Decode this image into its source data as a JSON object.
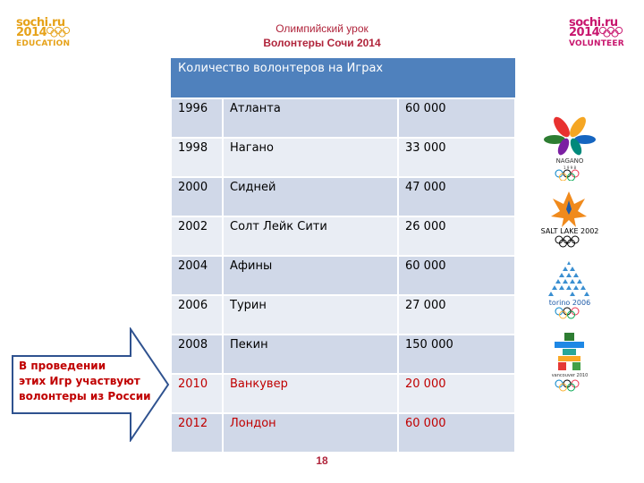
{
  "header": {
    "line1": "Олимпийский урок",
    "line2": "Волонтеры Сочи 2014"
  },
  "logos": {
    "left": {
      "brand_line1": "sochi.ru",
      "brand_line2": "2014",
      "sub": "EDUCATION",
      "color": "#e6a21a"
    },
    "right": {
      "brand_line1": "sochi.ru",
      "brand_line2": "2014",
      "sub": "VOLUNTEER",
      "color": "#c8166e"
    }
  },
  "table": {
    "title": "Количество волонтеров на Играх",
    "rows": [
      {
        "year": "1996",
        "city": "Атланта",
        "count": "60 000"
      },
      {
        "year": "1998",
        "city": "Нагано",
        "count": "33 000"
      },
      {
        "year": "2000",
        "city": "Сидней",
        "count": "47 000"
      },
      {
        "year": "2002",
        "city": "Солт Лейк Сити",
        "count": "26 000"
      },
      {
        "year": "2004",
        "city": "Афины",
        "count": "60 000"
      },
      {
        "year": "2006",
        "city": "Турин",
        "count": "27 000"
      },
      {
        "year": "2008",
        "city": "Пекин",
        "count": "150 000"
      },
      {
        "year": "2010",
        "city": "Ванкувер",
        "count": "20 000"
      },
      {
        "year": "2012",
        "city": "Лондон",
        "count": "60 000"
      }
    ],
    "header_color": "#4f81bd",
    "highlight_color": "#c00000"
  },
  "emblems": {
    "nagano": {
      "text": "NAGANO",
      "digits": "1 9 9 8"
    },
    "salt_lake": {
      "text": "SALT LAKE 2002"
    },
    "torino": {
      "text": "torino 2006"
    },
    "vancouver": {
      "text": "vancouver 2010"
    }
  },
  "callout": {
    "line1": "В проведении",
    "line2": "этих Игр участвуют",
    "line3": "волонтеры из России"
  },
  "page_number": "18"
}
